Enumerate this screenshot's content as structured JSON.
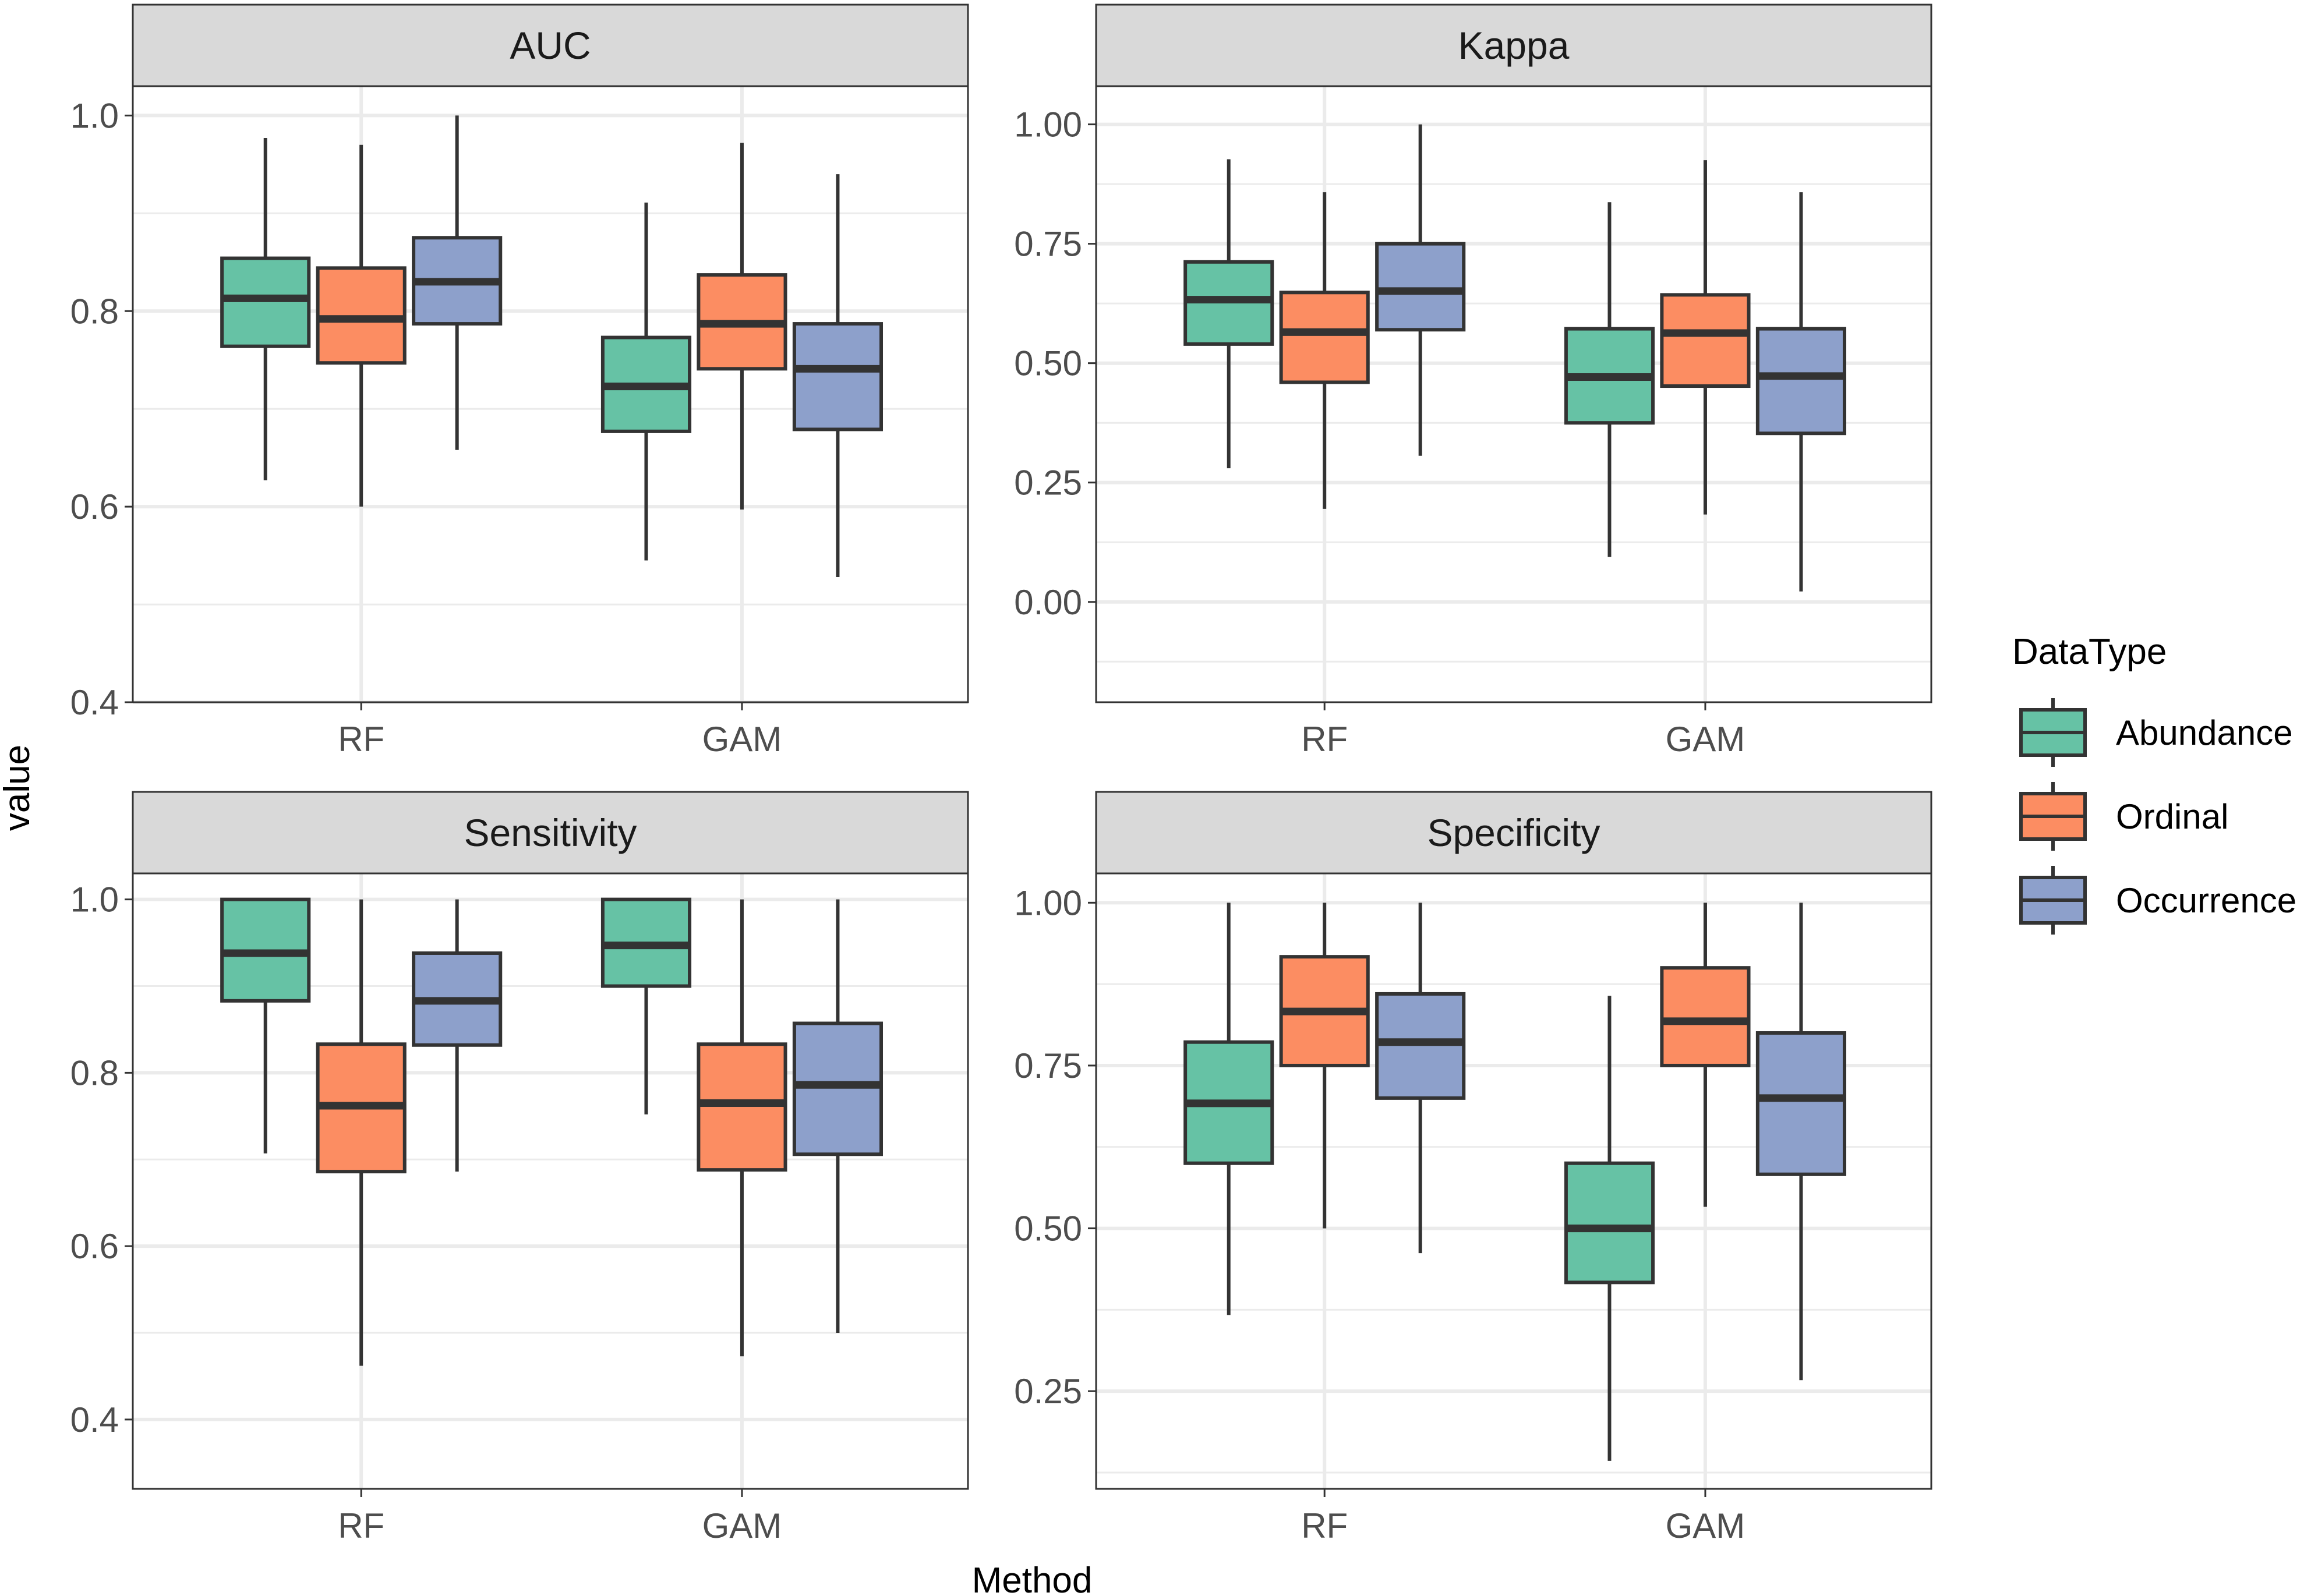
{
  "chart_data": {
    "type": "boxplot",
    "xlabel": "Method",
    "ylabel": "value",
    "categories": [
      "RF",
      "GAM"
    ],
    "legend": {
      "title": "DataType",
      "position": "right",
      "entries": [
        {
          "name": "Abundance",
          "color": "#66c2a5"
        },
        {
          "name": "Ordinal",
          "color": "#fc8d62"
        },
        {
          "name": "Occurrence",
          "color": "#8da0cb"
        }
      ]
    },
    "panels": [
      {
        "title": "AUC",
        "ylim": [
          0.4,
          1.03
        ],
        "yticks": [
          0.4,
          0.6,
          0.8,
          1.0
        ],
        "ytick_labels": [
          "0.4",
          "0.6",
          "0.8",
          "1.0"
        ],
        "minor_ticks": [
          0.5,
          0.7,
          0.9
        ],
        "groups": [
          {
            "method": "RF",
            "series": "Abundance",
            "min": 0.627,
            "q1": 0.764,
            "median": 0.813,
            "q3": 0.854,
            "max": 0.977
          },
          {
            "method": "RF",
            "series": "Ordinal",
            "min": 0.6,
            "q1": 0.747,
            "median": 0.792,
            "q3": 0.844,
            "max": 0.97
          },
          {
            "method": "RF",
            "series": "Occurrence",
            "min": 0.658,
            "q1": 0.787,
            "median": 0.83,
            "q3": 0.875,
            "max": 1.0
          },
          {
            "method": "GAM",
            "series": "Abundance",
            "min": 0.545,
            "q1": 0.677,
            "median": 0.723,
            "q3": 0.773,
            "max": 0.911
          },
          {
            "method": "GAM",
            "series": "Ordinal",
            "min": 0.597,
            "q1": 0.741,
            "median": 0.787,
            "q3": 0.837,
            "max": 0.972
          },
          {
            "method": "GAM",
            "series": "Occurrence",
            "min": 0.528,
            "q1": 0.679,
            "median": 0.741,
            "q3": 0.787,
            "max": 0.94
          }
        ]
      },
      {
        "title": "Kappa",
        "ylim": [
          -0.21,
          1.08
        ],
        "yticks": [
          0.0,
          0.25,
          0.5,
          0.75,
          1.0
        ],
        "ytick_labels": [
          "0.00",
          "0.25",
          "0.50",
          "0.75",
          "1.00"
        ],
        "minor_ticks": [
          -0.125,
          0.125,
          0.375,
          0.625,
          0.875
        ],
        "groups": [
          {
            "method": "RF",
            "series": "Abundance",
            "min": 0.28,
            "q1": 0.54,
            "median": 0.633,
            "q3": 0.712,
            "max": 0.927
          },
          {
            "method": "RF",
            "series": "Ordinal",
            "min": 0.195,
            "q1": 0.46,
            "median": 0.565,
            "q3": 0.648,
            "max": 0.858
          },
          {
            "method": "RF",
            "series": "Occurrence",
            "min": 0.306,
            "q1": 0.57,
            "median": 0.651,
            "q3": 0.75,
            "max": 1.0
          },
          {
            "method": "GAM",
            "series": "Abundance",
            "min": 0.094,
            "q1": 0.375,
            "median": 0.471,
            "q3": 0.572,
            "max": 0.837
          },
          {
            "method": "GAM",
            "series": "Ordinal",
            "min": 0.183,
            "q1": 0.452,
            "median": 0.563,
            "q3": 0.643,
            "max": 0.925
          },
          {
            "method": "GAM",
            "series": "Occurrence",
            "min": 0.022,
            "q1": 0.353,
            "median": 0.473,
            "q3": 0.572,
            "max": 0.858
          }
        ]
      },
      {
        "title": "Sensitivity",
        "ylim": [
          0.32,
          1.03
        ],
        "yticks": [
          0.4,
          0.6,
          0.8,
          1.0
        ],
        "ytick_labels": [
          "0.4",
          "0.6",
          "0.8",
          "1.0"
        ],
        "minor_ticks": [
          0.5,
          0.7,
          0.9
        ],
        "groups": [
          {
            "method": "RF",
            "series": "Abundance",
            "min": 0.707,
            "q1": 0.883,
            "median": 0.938,
            "q3": 1.0,
            "max": 1.0
          },
          {
            "method": "RF",
            "series": "Ordinal",
            "min": 0.462,
            "q1": 0.686,
            "median": 0.762,
            "q3": 0.833,
            "max": 1.0
          },
          {
            "method": "RF",
            "series": "Occurrence",
            "min": 0.686,
            "q1": 0.832,
            "median": 0.883,
            "q3": 0.938,
            "max": 1.0
          },
          {
            "method": "GAM",
            "series": "Abundance",
            "min": 0.752,
            "q1": 0.9,
            "median": 0.947,
            "q3": 1.0,
            "max": 1.0
          },
          {
            "method": "GAM",
            "series": "Ordinal",
            "min": 0.473,
            "q1": 0.688,
            "median": 0.765,
            "q3": 0.833,
            "max": 1.0
          },
          {
            "method": "GAM",
            "series": "Occurrence",
            "min": 0.5,
            "q1": 0.706,
            "median": 0.786,
            "q3": 0.857,
            "max": 1.0
          }
        ]
      },
      {
        "title": "Specificity",
        "ylim": [
          0.1,
          1.045
        ],
        "yticks": [
          0.25,
          0.5,
          0.75,
          1.0
        ],
        "ytick_labels": [
          "0.25",
          "0.50",
          "0.75",
          "1.00"
        ],
        "minor_ticks": [
          0.125,
          0.375,
          0.625,
          0.875
        ],
        "groups": [
          {
            "method": "RF",
            "series": "Abundance",
            "min": 0.367,
            "q1": 0.6,
            "median": 0.692,
            "q3": 0.786,
            "max": 1.0
          },
          {
            "method": "RF",
            "series": "Ordinal",
            "min": 0.5,
            "q1": 0.75,
            "median": 0.833,
            "q3": 0.917,
            "max": 1.0
          },
          {
            "method": "RF",
            "series": "Occurrence",
            "min": 0.462,
            "q1": 0.7,
            "median": 0.786,
            "q3": 0.86,
            "max": 1.0
          },
          {
            "method": "GAM",
            "series": "Abundance",
            "min": 0.143,
            "q1": 0.417,
            "median": 0.5,
            "q3": 0.6,
            "max": 0.857
          },
          {
            "method": "GAM",
            "series": "Ordinal",
            "min": 0.533,
            "q1": 0.75,
            "median": 0.818,
            "q3": 0.9,
            "max": 1.0
          },
          {
            "method": "GAM",
            "series": "Occurrence",
            "min": 0.267,
            "q1": 0.583,
            "median": 0.7,
            "q3": 0.8,
            "max": 1.0
          }
        ]
      }
    ]
  }
}
